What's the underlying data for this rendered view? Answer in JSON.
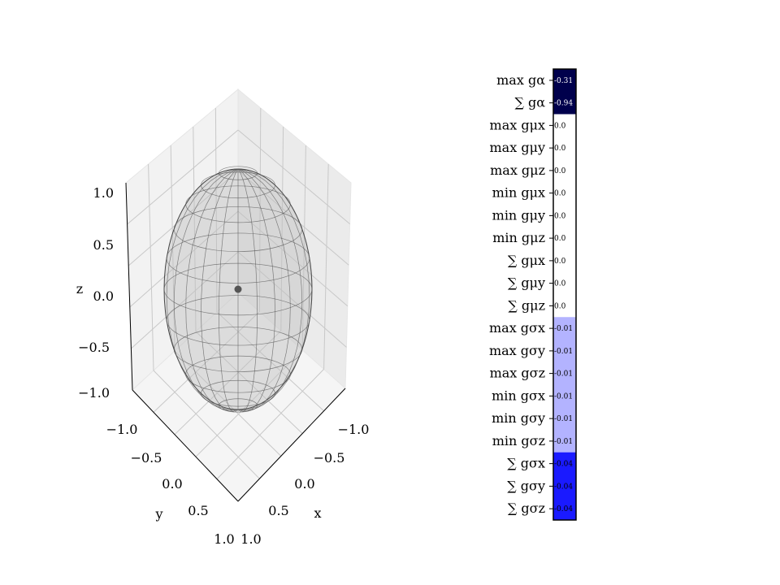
{
  "chart_data": [
    {
      "type": "3d-surface",
      "surface": "ellipsoid wireframe",
      "center_point": [
        0.0,
        0.0,
        0.0
      ],
      "xlabel": "x",
      "ylabel": "y",
      "zlabel": "z",
      "xticks": [
        "−1.0",
        "−0.5",
        "0.0",
        "0.5",
        "1.0"
      ],
      "yticks": [
        "−1.0",
        "−0.5",
        "0.0",
        "0.5",
        "1.0"
      ],
      "zticks": [
        "1.0",
        "0.5",
        "0.0",
        "−0.5",
        "−1.0"
      ],
      "xlim": [
        -1,
        1
      ],
      "ylim": [
        -1,
        1
      ],
      "zlim": [
        -1,
        1
      ],
      "grid": true,
      "colors": {
        "surface": "#bfbfbf",
        "wire": "#3a3a3a",
        "point": "#555555",
        "pane": "#f2f2f2"
      }
    },
    {
      "type": "heatmap",
      "rows": [
        "max gα",
        "∑ gα",
        "max gμx",
        "max gμy",
        "max gμz",
        "min gμx",
        "min gμy",
        "min gμz",
        "∑ gμx",
        "∑ gμy",
        "∑ gμz",
        "max gσx",
        "max gσy",
        "max gσz",
        "min gσx",
        "min gσy",
        "min gσz",
        "∑ gσx",
        "∑ gσy",
        "∑ gσz"
      ],
      "values": [
        -0.31,
        -0.94,
        0.0,
        0.0,
        0.0,
        0.0,
        0.0,
        0.0,
        0.0,
        0.0,
        0.0,
        -0.01,
        -0.01,
        -0.01,
        -0.01,
        -0.01,
        -0.01,
        -0.04,
        -0.04,
        -0.04
      ],
      "labels": [
        "-0.31",
        "-0.94",
        "0.0",
        "0.0",
        "0.0",
        "0.0",
        "0.0",
        "0.0",
        "0.0",
        "0.0",
        "0.0",
        "-0.01",
        "-0.01",
        "-0.01",
        "-0.01",
        "-0.01",
        "-0.01",
        "-0.04",
        "-0.04",
        "-0.04"
      ],
      "colormap": "seismic",
      "cell_colors": [
        "#00004c",
        "#00004c",
        "#ffffff",
        "#ffffff",
        "#ffffff",
        "#ffffff",
        "#ffffff",
        "#ffffff",
        "#ffffff",
        "#ffffff",
        "#ffffff",
        "#b3b3ff",
        "#b3b3ff",
        "#b3b3ff",
        "#b3b3ff",
        "#b3b3ff",
        "#b3b3ff",
        "#1a1aff",
        "#1a1aff",
        "#1a1aff"
      ]
    }
  ]
}
